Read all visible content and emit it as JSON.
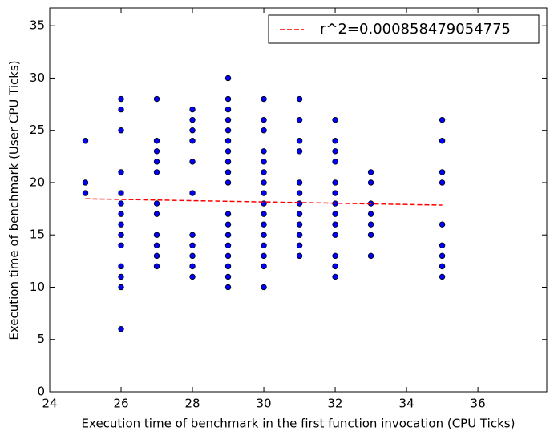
{
  "chart_data": {
    "type": "scatter",
    "xlabel": "Execution time of benchmark in the first function invocation (CPU Ticks)",
    "ylabel": "Execution time of benchmark (User CPU Ticks)",
    "xlim": [
      24,
      37.93
    ],
    "ylim": [
      0,
      36.7
    ],
    "xticks": [
      24,
      26,
      28,
      30,
      32,
      34,
      36
    ],
    "yticks": [
      0,
      5,
      10,
      15,
      20,
      25,
      30,
      35
    ],
    "legend": "upper right",
    "series": [
      {
        "type": "scatter",
        "color": "#0000ff",
        "x": [
          25,
          25,
          25,
          26,
          26,
          26,
          26,
          26,
          26,
          26,
          26,
          26,
          26,
          26,
          26,
          26,
          26,
          27,
          27,
          27,
          27,
          27,
          27,
          27,
          27,
          27,
          27,
          27,
          28,
          28,
          28,
          28,
          28,
          28,
          28,
          28,
          28,
          28,
          28,
          29,
          29,
          29,
          29,
          29,
          29,
          29,
          29,
          29,
          29,
          29,
          29,
          29,
          29,
          29,
          29,
          29,
          29,
          30,
          30,
          30,
          30,
          30,
          30,
          30,
          30,
          30,
          30,
          30,
          30,
          30,
          30,
          30,
          30,
          31,
          31,
          31,
          31,
          31,
          31,
          31,
          31,
          31,
          31,
          31,
          31,
          32,
          32,
          32,
          32,
          32,
          32,
          32,
          32,
          32,
          32,
          32,
          32,
          32,
          33,
          33,
          33,
          33,
          33,
          33,
          33,
          35,
          35,
          35,
          35,
          35,
          35,
          35,
          35,
          35
        ],
        "values": [
          24,
          20,
          19,
          28,
          27,
          25,
          21,
          19,
          18,
          17,
          16,
          15,
          14,
          12,
          11,
          10,
          6,
          28,
          24,
          23,
          22,
          21,
          18,
          17,
          15,
          14,
          13,
          12,
          27,
          26,
          25,
          24,
          22,
          19,
          15,
          14,
          13,
          12,
          11,
          30,
          28,
          27,
          26,
          25,
          24,
          23,
          22,
          21,
          20,
          17,
          16,
          15,
          14,
          13,
          12,
          11,
          10,
          28,
          26,
          25,
          23,
          22,
          21,
          20,
          19,
          18,
          17,
          16,
          15,
          14,
          13,
          12,
          10,
          28,
          26,
          24,
          23,
          20,
          19,
          18,
          17,
          16,
          15,
          14,
          13,
          26,
          24,
          23,
          22,
          20,
          19,
          18,
          17,
          16,
          15,
          13,
          12,
          11,
          21,
          20,
          18,
          17,
          16,
          15,
          13,
          26,
          24,
          21,
          20,
          16,
          14,
          13,
          12,
          11
        ]
      },
      {
        "type": "line",
        "name": "r^2=0.000858479054775",
        "color": "#ff0000",
        "dashed": true,
        "x": [
          25,
          35
        ],
        "values": [
          18.45,
          17.85
        ]
      }
    ]
  }
}
